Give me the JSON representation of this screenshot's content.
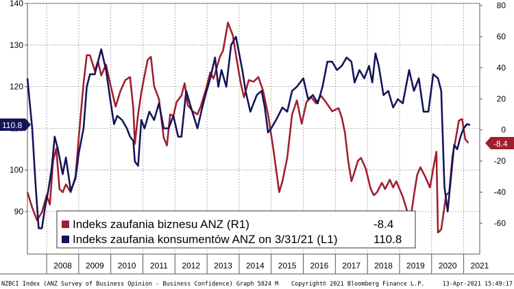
{
  "chart_data": {
    "type": "line",
    "x_range": [
      2007.4,
      2021.5
    ],
    "ylim_left": [
      80,
      140
    ],
    "ylim_right": [
      -80,
      80
    ],
    "left_ticks": [
      90,
      100,
      110,
      120,
      130,
      140
    ],
    "right_ticks": [
      -60,
      -40,
      -20,
      0,
      20,
      40,
      60,
      80
    ],
    "year_labels": [
      "2008",
      "2009",
      "2010",
      "2011",
      "2012",
      "2013",
      "2014",
      "2015",
      "2016",
      "2017",
      "2018",
      "2019",
      "2020",
      "2021"
    ],
    "grid": true,
    "legend_position": "bottom-left",
    "series": [
      {
        "name": "Indeks zaufania biznesu ANZ (R1)",
        "axis": "right",
        "color": "#a01f2e",
        "last_value_label": "-8.4",
        "last_value": "-8.4",
        "points": [
          [
            2007.4,
            -40
          ],
          [
            2007.55,
            -50
          ],
          [
            2007.7,
            -58
          ],
          [
            2007.85,
            -53
          ],
          [
            2008.0,
            -42
          ],
          [
            2008.1,
            -48
          ],
          [
            2008.2,
            -20
          ],
          [
            2008.3,
            -12
          ],
          [
            2008.4,
            -38
          ],
          [
            2008.5,
            -40
          ],
          [
            2008.6,
            -35
          ],
          [
            2008.75,
            -40
          ],
          [
            2008.9,
            -30
          ],
          [
            2009.0,
            -5
          ],
          [
            2009.15,
            30
          ],
          [
            2009.25,
            48
          ],
          [
            2009.35,
            48
          ],
          [
            2009.5,
            38
          ],
          [
            2009.6,
            44
          ],
          [
            2009.7,
            35
          ],
          [
            2009.85,
            42
          ],
          [
            2010.0,
            28
          ],
          [
            2010.15,
            15
          ],
          [
            2010.3,
            25
          ],
          [
            2010.45,
            32
          ],
          [
            2010.6,
            34
          ],
          [
            2010.7,
            14
          ],
          [
            2010.75,
            -9
          ],
          [
            2010.85,
            10
          ],
          [
            2010.95,
            24
          ],
          [
            2011.05,
            35
          ],
          [
            2011.15,
            45
          ],
          [
            2011.25,
            47
          ],
          [
            2011.35,
            28
          ],
          [
            2011.5,
            20
          ],
          [
            2011.65,
            -5
          ],
          [
            2011.75,
            -10
          ],
          [
            2011.85,
            10
          ],
          [
            2011.95,
            9
          ],
          [
            2012.05,
            18
          ],
          [
            2012.2,
            22
          ],
          [
            2012.3,
            30
          ],
          [
            2012.4,
            16
          ],
          [
            2012.55,
            12
          ],
          [
            2012.7,
            10
          ],
          [
            2012.8,
            15
          ],
          [
            2012.95,
            25
          ],
          [
            2013.1,
            37
          ],
          [
            2013.2,
            33
          ],
          [
            2013.3,
            40
          ],
          [
            2013.4,
            47
          ],
          [
            2013.5,
            51
          ],
          [
            2013.65,
            69
          ],
          [
            2013.8,
            61
          ],
          [
            2013.95,
            42
          ],
          [
            2014.05,
            30
          ],
          [
            2014.15,
            21
          ],
          [
            2014.3,
            32
          ],
          [
            2014.45,
            31
          ],
          [
            2014.6,
            34
          ],
          [
            2014.75,
            25
          ],
          [
            2014.9,
            10
          ],
          [
            2015.05,
            -10
          ],
          [
            2015.25,
            -40
          ],
          [
            2015.35,
            -33
          ],
          [
            2015.5,
            -18
          ],
          [
            2015.65,
            10
          ],
          [
            2015.8,
            19
          ],
          [
            2015.95,
            4
          ],
          [
            2016.1,
            18
          ],
          [
            2016.25,
            21
          ],
          [
            2016.4,
            17
          ],
          [
            2016.55,
            22
          ],
          [
            2016.7,
            18
          ],
          [
            2016.9,
            12
          ],
          [
            2017.1,
            14
          ],
          [
            2017.2,
            8
          ],
          [
            2017.3,
            -2
          ],
          [
            2017.4,
            -20
          ],
          [
            2017.5,
            -33
          ],
          [
            2017.6,
            -27
          ],
          [
            2017.7,
            -20
          ],
          [
            2017.8,
            -18
          ],
          [
            2017.95,
            -25
          ],
          [
            2018.1,
            -38
          ],
          [
            2018.2,
            -42
          ],
          [
            2018.3,
            -40
          ],
          [
            2018.45,
            -34
          ],
          [
            2018.55,
            -38
          ],
          [
            2018.7,
            -32
          ],
          [
            2018.8,
            -37
          ],
          [
            2018.9,
            -33
          ],
          [
            2019.1,
            -43
          ],
          [
            2019.25,
            -53
          ],
          [
            2019.35,
            -56
          ],
          [
            2019.45,
            -42
          ],
          [
            2019.55,
            -29
          ],
          [
            2019.65,
            -24
          ],
          [
            2019.8,
            -30
          ],
          [
            2019.95,
            -37
          ],
          [
            2020.05,
            -25
          ],
          [
            2020.15,
            -14
          ],
          [
            2020.2,
            -66
          ],
          [
            2020.3,
            -64
          ],
          [
            2020.45,
            -42
          ],
          [
            2020.55,
            -40
          ],
          [
            2020.65,
            -17
          ],
          [
            2020.75,
            -6
          ],
          [
            2020.85,
            6
          ],
          [
            2020.95,
            7
          ],
          [
            2021.05,
            -6
          ],
          [
            2021.15,
            -8.4
          ]
        ]
      },
      {
        "name": "Indeks zaufania konsumentów ANZ on 3/31/21 (L1)",
        "axis": "left",
        "color": "#14145a",
        "last_value_label": "110.8",
        "last_value": "110.8",
        "points": [
          [
            2007.4,
            122
          ],
          [
            2007.55,
            110
          ],
          [
            2007.65,
            97
          ],
          [
            2007.75,
            86
          ],
          [
            2007.85,
            86
          ],
          [
            2007.95,
            91
          ],
          [
            2008.05,
            95
          ],
          [
            2008.15,
            100
          ],
          [
            2008.25,
            108
          ],
          [
            2008.35,
            105
          ],
          [
            2008.5,
            99
          ],
          [
            2008.6,
            103
          ],
          [
            2008.75,
            95
          ],
          [
            2008.9,
            98
          ],
          [
            2009.0,
            104
          ],
          [
            2009.15,
            110
          ],
          [
            2009.25,
            120
          ],
          [
            2009.35,
            123
          ],
          [
            2009.5,
            123
          ],
          [
            2009.6,
            126
          ],
          [
            2009.7,
            129
          ],
          [
            2009.85,
            124
          ],
          [
            2010.0,
            116
          ],
          [
            2010.1,
            111
          ],
          [
            2010.2,
            113
          ],
          [
            2010.35,
            112
          ],
          [
            2010.5,
            110
          ],
          [
            2010.6,
            108
          ],
          [
            2010.7,
            107
          ],
          [
            2010.75,
            102
          ],
          [
            2010.85,
            101
          ],
          [
            2010.95,
            112
          ],
          [
            2011.05,
            110
          ],
          [
            2011.2,
            114
          ],
          [
            2011.35,
            112
          ],
          [
            2011.5,
            116
          ],
          [
            2011.65,
            110
          ],
          [
            2011.8,
            110
          ],
          [
            2011.95,
            113
          ],
          [
            2012.1,
            108
          ],
          [
            2012.2,
            108
          ],
          [
            2012.35,
            119
          ],
          [
            2012.5,
            115
          ],
          [
            2012.7,
            110
          ],
          [
            2012.85,
            115
          ],
          [
            2012.95,
            118
          ],
          [
            2013.1,
            122
          ],
          [
            2013.25,
            127
          ],
          [
            2013.35,
            120
          ],
          [
            2013.45,
            124
          ],
          [
            2013.6,
            120
          ],
          [
            2013.75,
            130
          ],
          [
            2013.9,
            132
          ],
          [
            2014.0,
            128
          ],
          [
            2014.1,
            124
          ],
          [
            2014.2,
            119
          ],
          [
            2014.35,
            114
          ],
          [
            2014.55,
            118
          ],
          [
            2014.7,
            119
          ],
          [
            2014.8,
            115
          ],
          [
            2014.9,
            109
          ],
          [
            2015.0,
            110
          ],
          [
            2015.15,
            112
          ],
          [
            2015.35,
            115
          ],
          [
            2015.5,
            114
          ],
          [
            2015.65,
            119
          ],
          [
            2015.8,
            120
          ],
          [
            2016.0,
            122
          ],
          [
            2016.15,
            117
          ],
          [
            2016.3,
            118
          ],
          [
            2016.45,
            116
          ],
          [
            2016.6,
            120
          ],
          [
            2016.75,
            126
          ],
          [
            2016.9,
            126
          ],
          [
            2017.05,
            124
          ],
          [
            2017.2,
            125
          ],
          [
            2017.35,
            127
          ],
          [
            2017.5,
            126
          ],
          [
            2017.6,
            121
          ],
          [
            2017.75,
            124
          ],
          [
            2017.9,
            122
          ],
          [
            2018.05,
            125
          ],
          [
            2018.15,
            121
          ],
          [
            2018.25,
            128
          ],
          [
            2018.35,
            125
          ],
          [
            2018.5,
            118
          ],
          [
            2018.65,
            119
          ],
          [
            2018.8,
            115
          ],
          [
            2018.95,
            117
          ],
          [
            2019.1,
            116
          ],
          [
            2019.3,
            124
          ],
          [
            2019.45,
            119
          ],
          [
            2019.6,
            122
          ],
          [
            2019.75,
            114
          ],
          [
            2019.9,
            114
          ],
          [
            2020.05,
            123
          ],
          [
            2020.2,
            122
          ],
          [
            2020.3,
            119
          ],
          [
            2020.4,
            96
          ],
          [
            2020.5,
            90
          ],
          [
            2020.6,
            98
          ],
          [
            2020.7,
            106
          ],
          [
            2020.8,
            105
          ],
          [
            2020.9,
            108
          ],
          [
            2021.0,
            110
          ],
          [
            2021.1,
            111
          ],
          [
            2021.2,
            110.8
          ]
        ]
      }
    ]
  },
  "legend": {
    "item1_label": "Indeks zaufania biznesu ANZ (R1)",
    "item1_value": "-8.4",
    "item2_label": "Indeks zaufania konsumentów ANZ on 3/31/21 (L1)",
    "item2_value": "110.8"
  },
  "footer": {
    "left": "NZBCI Index (ANZ Survey of Business Opinion - Business Confidence) Graph 5824  M",
    "center": "Copyright© 2021 Bloomberg Finance L.P.",
    "right": "13-Apr-2021 15:49:17"
  },
  "colors": {
    "business": "#a01f2e",
    "consumer": "#14145a",
    "grid": "#9a9a9a"
  }
}
